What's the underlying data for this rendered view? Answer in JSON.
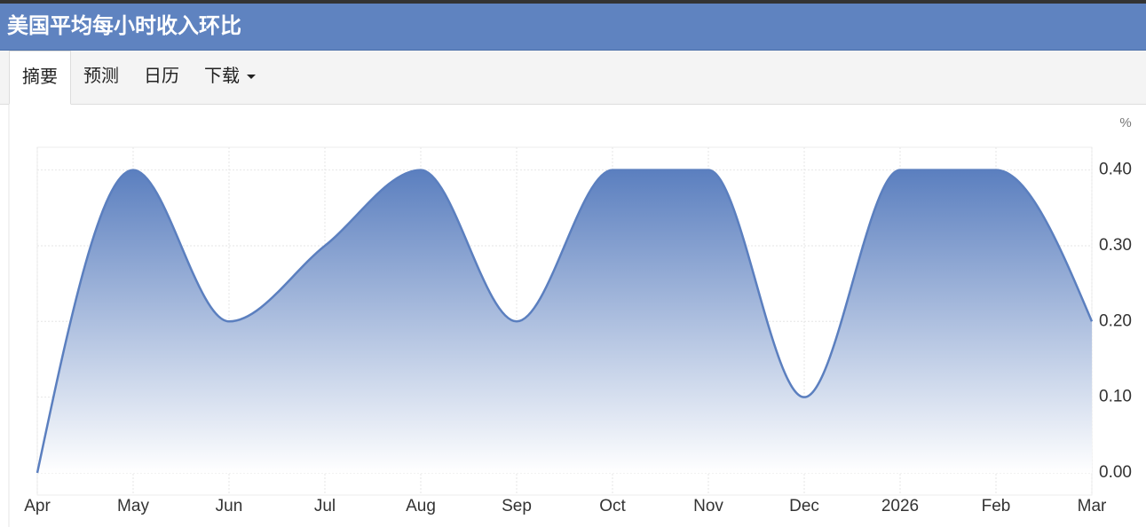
{
  "header": {
    "title": "美国平均每小时收入环比"
  },
  "tabs": [
    "摘要",
    "预测",
    "日历",
    "下载"
  ],
  "chart_data": {
    "type": "area",
    "unit": "%",
    "categories": [
      "Apr",
      "May",
      "Jun",
      "Jul",
      "Aug",
      "Sep",
      "Oct",
      "Nov",
      "Dec",
      "2026",
      "Feb",
      "Mar"
    ],
    "series": [
      {
        "color": "#5b7fbf",
        "values": [
          0.0,
          0.4,
          0.2,
          0.3,
          0.4,
          0.2,
          0.4,
          0.4,
          0.1,
          0.4,
          0.4,
          0.2
        ]
      }
    ],
    "ylim": [
      0,
      0.43
    ],
    "yticks": [
      {
        "value": 0,
        "label": "0.00"
      },
      {
        "value": 0.1,
        "label": "0.10"
      },
      {
        "value": 0.2,
        "label": "0.20"
      },
      {
        "value": 0.3,
        "label": "0.30"
      },
      {
        "value": 0.4,
        "label": "0.40"
      }
    ],
    "grid": true
  }
}
